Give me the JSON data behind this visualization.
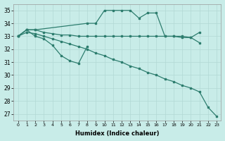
{
  "xlabel": "Humidex (Indice chaleur)",
  "ylim": [
    26.5,
    35.5
  ],
  "xlim": [
    -0.5,
    23.5
  ],
  "yticks": [
    27,
    28,
    29,
    30,
    31,
    32,
    33,
    34,
    35
  ],
  "xticks": [
    0,
    1,
    2,
    3,
    4,
    5,
    6,
    7,
    8,
    9,
    10,
    11,
    12,
    13,
    14,
    15,
    16,
    17,
    18,
    19,
    20,
    21,
    22,
    23
  ],
  "line_color": "#2d7d6e",
  "bg_color": "#c8ece8",
  "grid_color": "#b2d8d4",
  "lines": [
    {
      "x": [
        0,
        1,
        2,
        3,
        4,
        5,
        6,
        7,
        8,
        9,
        10,
        11,
        12,
        13,
        14,
        15,
        16,
        17,
        18,
        19,
        20,
        21
      ],
      "y": [
        33.0,
        33.5,
        33.5,
        33.3,
        33.2,
        33.1,
        33.1,
        33.0,
        33.0,
        33.0,
        33.0,
        33.0,
        33.0,
        33.0,
        33.0,
        33.0,
        33.0,
        33.0,
        33.0,
        33.0,
        32.9,
        32.5
      ]
    },
    {
      "x": [
        0,
        1,
        2,
        8,
        9,
        10,
        11,
        12,
        13,
        14,
        15,
        16,
        17,
        18,
        19,
        20,
        21
      ],
      "y": [
        33.0,
        33.5,
        33.5,
        34.0,
        34.0,
        35.0,
        35.0,
        35.0,
        35.0,
        34.4,
        34.8,
        34.8,
        33.0,
        33.0,
        32.9,
        32.9,
        33.3
      ]
    },
    {
      "x": [
        0,
        1,
        2,
        3,
        4,
        5,
        6,
        7,
        8
      ],
      "y": [
        33.0,
        33.5,
        33.0,
        32.8,
        32.3,
        31.5,
        31.1,
        30.9,
        32.2
      ]
    },
    {
      "x": [
        0,
        1,
        2,
        3,
        4,
        5,
        6,
        7,
        8,
        9,
        10,
        11,
        12,
        13,
        14,
        15,
        16,
        17,
        18,
        19,
        20,
        21,
        22,
        23
      ],
      "y": [
        33.0,
        33.3,
        33.2,
        33.0,
        32.8,
        32.6,
        32.4,
        32.2,
        32.0,
        31.7,
        31.5,
        31.2,
        31.0,
        30.7,
        30.5,
        30.2,
        30.0,
        29.7,
        29.5,
        29.2,
        29.0,
        28.7,
        27.5,
        26.8
      ]
    }
  ]
}
